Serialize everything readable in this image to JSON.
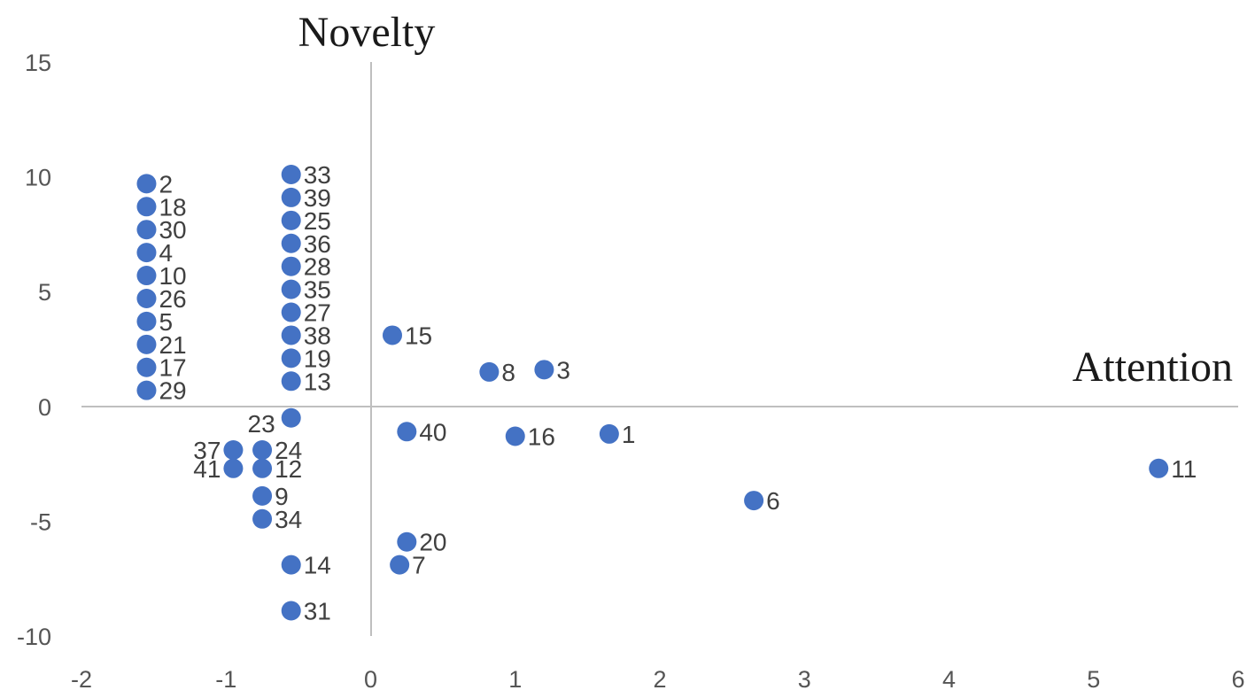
{
  "chart_data": {
    "type": "scatter",
    "title": "",
    "xlabel": "Attention",
    "ylabel": "Novelty",
    "xlim": [
      -2,
      6
    ],
    "ylim": [
      -10,
      15
    ],
    "xticks": [
      -2,
      -1,
      0,
      1,
      2,
      3,
      4,
      5,
      6
    ],
    "yticks": [
      -10,
      -5,
      0,
      5,
      10,
      15
    ],
    "xtick_labels": [
      "-2",
      "-1",
      "0",
      "1",
      "2",
      "3",
      "4",
      "5",
      "6"
    ],
    "ytick_labels": [
      "-10",
      "-5",
      "0",
      "5",
      "10",
      "15"
    ],
    "grid": false,
    "marker_color": "#4472C4",
    "points": [
      {
        "label": "1",
        "x": 1.65,
        "y": -1.2
      },
      {
        "label": "2",
        "x": -1.55,
        "y": 9.7
      },
      {
        "label": "3",
        "x": 1.2,
        "y": 1.6
      },
      {
        "label": "4",
        "x": -1.55,
        "y": 6.7
      },
      {
        "label": "5",
        "x": -1.55,
        "y": 3.7
      },
      {
        "label": "6",
        "x": 2.65,
        "y": -4.1
      },
      {
        "label": "7",
        "x": 0.2,
        "y": -6.9
      },
      {
        "label": "8",
        "x": 0.82,
        "y": 1.5
      },
      {
        "label": "9",
        "x": -0.75,
        "y": -3.9
      },
      {
        "label": "10",
        "x": -1.55,
        "y": 5.7
      },
      {
        "label": "11",
        "x": 5.45,
        "y": -2.7
      },
      {
        "label": "12",
        "x": -0.75,
        "y": -2.7
      },
      {
        "label": "13",
        "x": -0.55,
        "y": 1.1
      },
      {
        "label": "14",
        "x": -0.55,
        "y": -6.9
      },
      {
        "label": "15",
        "x": 0.15,
        "y": 3.1
      },
      {
        "label": "16",
        "x": 1.0,
        "y": -1.3
      },
      {
        "label": "17",
        "x": -1.55,
        "y": 1.7
      },
      {
        "label": "18",
        "x": -1.55,
        "y": 8.7
      },
      {
        "label": "19",
        "x": -0.55,
        "y": 2.1
      },
      {
        "label": "20",
        "x": 0.25,
        "y": -5.9
      },
      {
        "label": "21",
        "x": -1.55,
        "y": 2.7
      },
      {
        "label": "23",
        "x": -0.55,
        "y": -0.5
      },
      {
        "label": "24",
        "x": -0.75,
        "y": -1.9
      },
      {
        "label": "25",
        "x": -0.55,
        "y": 8.1
      },
      {
        "label": "26",
        "x": -1.55,
        "y": 4.7
      },
      {
        "label": "27",
        "x": -0.55,
        "y": 4.1
      },
      {
        "label": "28",
        "x": -0.55,
        "y": 6.1
      },
      {
        "label": "29",
        "x": -1.55,
        "y": 0.7
      },
      {
        "label": "30",
        "x": -1.55,
        "y": 7.7
      },
      {
        "label": "31",
        "x": -0.55,
        "y": -8.9
      },
      {
        "label": "33",
        "x": -0.55,
        "y": 10.1
      },
      {
        "label": "34",
        "x": -0.75,
        "y": -4.9
      },
      {
        "label": "35",
        "x": -0.55,
        "y": 5.1
      },
      {
        "label": "36",
        "x": -0.55,
        "y": 7.1
      },
      {
        "label": "37",
        "x": -0.95,
        "y": -1.9
      },
      {
        "label": "38",
        "x": -0.55,
        "y": 3.1
      },
      {
        "label": "39",
        "x": -0.55,
        "y": 9.1
      },
      {
        "label": "40",
        "x": 0.25,
        "y": -1.1
      },
      {
        "label": "41",
        "x": -0.95,
        "y": -2.7
      }
    ]
  }
}
